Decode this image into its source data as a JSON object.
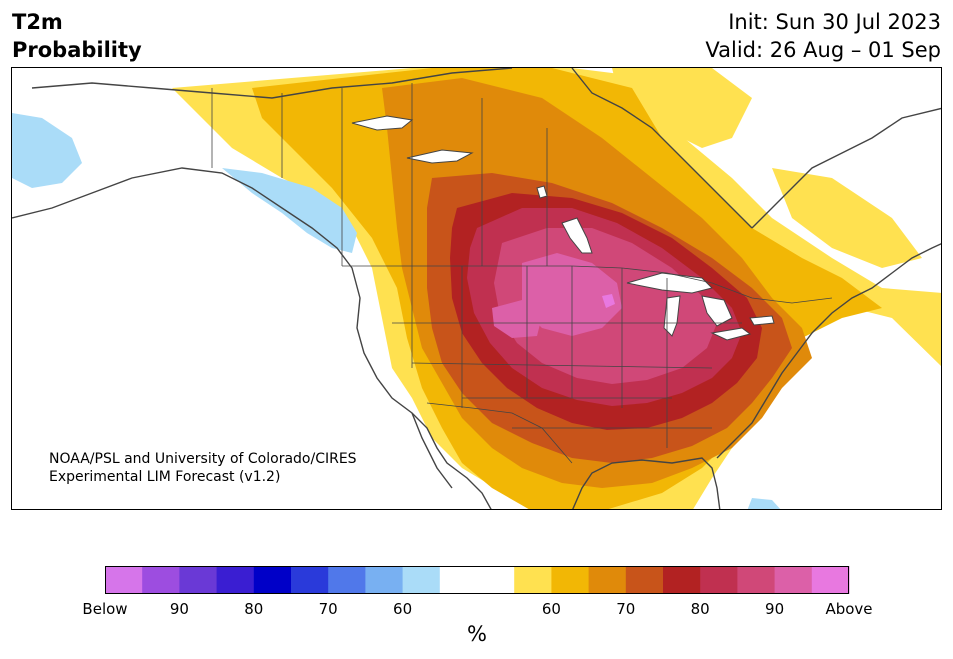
{
  "title": {
    "line1": "T2m",
    "line2": "Probability"
  },
  "init": "Init: Sun 30 Jul 2023",
  "valid": "Valid: 26 Aug – 01 Sep",
  "credit": {
    "line1": "NOAA/PSL and University of Colorado/CIRES",
    "line2": "Experimental LIM Forecast (v1.2)"
  },
  "legend": {
    "colors": [
      "#d675ea",
      "#9d4de0",
      "#6a39d6",
      "#3a1ed2",
      "#0000c8",
      "#2a3ada",
      "#5078ea",
      "#78b0f2",
      "#aadcf8",
      "#ffffff",
      "#ffffff",
      "#ffe150",
      "#f2b705",
      "#e08a0a",
      "#c8541a",
      "#b22222",
      "#c03050",
      "#d04878",
      "#dc60a8",
      "#e878e0"
    ],
    "tick_labels": [
      "Below",
      "90",
      "80",
      "70",
      "60",
      "60",
      "70",
      "80",
      "90",
      "Above"
    ],
    "unit": "%"
  },
  "map_colors": {
    "ocean": "#ffffff",
    "land": "#ffffff",
    "borders": "#444444",
    "lakes": "#ffffff",
    "below_light": "#aadcf8"
  }
}
